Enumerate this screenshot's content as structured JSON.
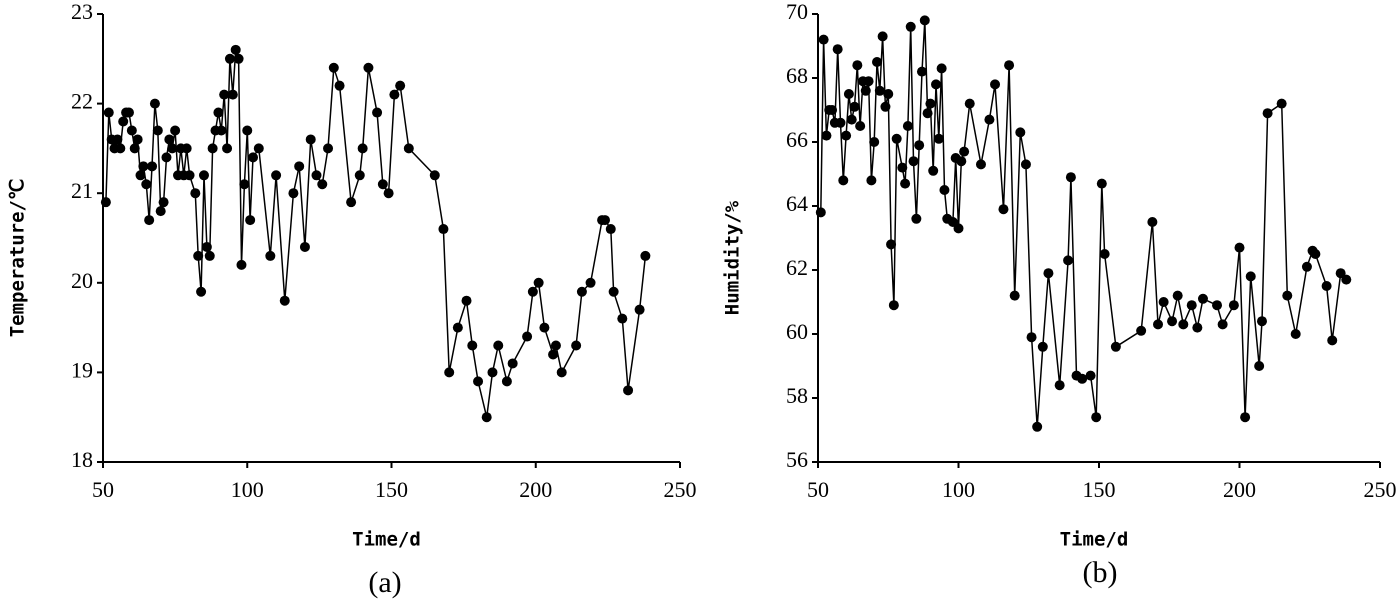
{
  "chart_data": [
    {
      "type": "line",
      "caption": "(a)",
      "x_label": "Time/d",
      "y_label": "Temperature/℃",
      "color": "#000000",
      "xlim": [
        50,
        250
      ],
      "xticks": [
        50,
        100,
        150,
        200,
        250
      ],
      "ylim": [
        18,
        23
      ],
      "yticks": [
        18,
        19,
        20,
        21,
        22,
        23
      ],
      "x": [
        51,
        52,
        53,
        54,
        55,
        56,
        57,
        58,
        59,
        60,
        61,
        62,
        63,
        64,
        65,
        66,
        67,
        68,
        69,
        70,
        71,
        72,
        73,
        74,
        75,
        76,
        77,
        78,
        79,
        80,
        82,
        83,
        84,
        85,
        86,
        87,
        88,
        89,
        90,
        91,
        92,
        93,
        94,
        95,
        96,
        97,
        98,
        99,
        100,
        101,
        102,
        104,
        108,
        110,
        113,
        116,
        118,
        120,
        122,
        124,
        126,
        128,
        130,
        132,
        136,
        139,
        140,
        142,
        145,
        147,
        149,
        151,
        153,
        156,
        165,
        168,
        170,
        173,
        176,
        178,
        180,
        183,
        185,
        187,
        190,
        192,
        197,
        199,
        201,
        203,
        206,
        207,
        209,
        214,
        216,
        219,
        223,
        224,
        226,
        227,
        230,
        232,
        236,
        238
      ],
      "values": [
        20.9,
        21.9,
        21.6,
        21.5,
        21.6,
        21.5,
        21.8,
        21.9,
        21.9,
        21.7,
        21.5,
        21.6,
        21.2,
        21.3,
        21.1,
        20.7,
        21.3,
        22.0,
        21.7,
        20.8,
        20.9,
        21.4,
        21.6,
        21.5,
        21.7,
        21.2,
        21.5,
        21.2,
        21.5,
        21.2,
        21.0,
        20.3,
        19.9,
        21.2,
        20.4,
        20.3,
        21.5,
        21.7,
        21.9,
        21.7,
        22.1,
        21.5,
        22.5,
        22.1,
        22.6,
        22.5,
        20.2,
        21.1,
        21.7,
        20.7,
        21.4,
        21.5,
        20.3,
        21.2,
        19.8,
        21.0,
        21.3,
        20.4,
        21.6,
        21.2,
        21.1,
        21.5,
        22.4,
        22.2,
        20.9,
        21.2,
        21.5,
        22.4,
        21.9,
        21.1,
        21.0,
        22.1,
        22.2,
        21.5,
        21.2,
        20.6,
        19.0,
        19.5,
        19.8,
        19.3,
        18.9,
        18.5,
        19.0,
        19.3,
        18.9,
        19.1,
        19.4,
        19.9,
        20.0,
        19.5,
        19.2,
        19.3,
        19.0,
        19.3,
        19.9,
        20.0,
        20.7,
        20.7,
        20.6,
        19.9,
        19.6,
        18.8,
        19.7,
        20.3
      ]
    },
    {
      "type": "line",
      "caption": "(b)",
      "x_label": "Time/d",
      "y_label": "Humidity/%",
      "color": "#000000",
      "xlim": [
        50,
        250
      ],
      "xticks": [
        50,
        100,
        150,
        200,
        250
      ],
      "ylim": [
        56,
        70
      ],
      "yticks": [
        56,
        58,
        60,
        62,
        64,
        66,
        68,
        70
      ],
      "x": [
        51,
        52,
        53,
        54,
        55,
        56,
        57,
        58,
        59,
        60,
        61,
        62,
        63,
        64,
        65,
        66,
        67,
        68,
        69,
        70,
        71,
        72,
        73,
        74,
        75,
        76,
        77,
        78,
        80,
        81,
        82,
        83,
        84,
        85,
        86,
        87,
        88,
        89,
        90,
        91,
        92,
        93,
        94,
        95,
        96,
        98,
        99,
        100,
        101,
        102,
        104,
        108,
        111,
        113,
        116,
        118,
        120,
        122,
        124,
        126,
        128,
        130,
        132,
        136,
        139,
        140,
        142,
        144,
        147,
        149,
        151,
        152,
        156,
        165,
        169,
        171,
        173,
        176,
        178,
        180,
        183,
        185,
        187,
        192,
        194,
        198,
        200,
        202,
        204,
        207,
        208,
        210,
        215,
        217,
        220,
        224,
        226,
        227,
        231,
        233,
        236,
        238
      ],
      "values": [
        63.8,
        69.2,
        66.2,
        67.0,
        67.0,
        66.6,
        68.9,
        66.6,
        64.8,
        66.2,
        67.5,
        66.7,
        67.1,
        68.4,
        66.5,
        67.9,
        67.6,
        67.9,
        64.8,
        66.0,
        68.5,
        67.6,
        69.3,
        67.1,
        67.5,
        62.8,
        60.9,
        66.1,
        65.2,
        64.7,
        66.5,
        69.6,
        65.4,
        63.6,
        65.9,
        68.2,
        69.8,
        66.9,
        67.2,
        65.1,
        67.8,
        66.1,
        68.3,
        64.5,
        63.6,
        63.5,
        65.5,
        63.3,
        65.4,
        65.7,
        67.2,
        65.3,
        66.7,
        67.8,
        63.9,
        68.4,
        61.2,
        66.3,
        65.3,
        59.9,
        57.1,
        59.6,
        61.9,
        58.4,
        62.3,
        64.9,
        58.7,
        58.6,
        58.7,
        57.4,
        64.7,
        62.5,
        59.6,
        60.1,
        63.5,
        60.3,
        61.0,
        60.4,
        61.2,
        60.3,
        60.9,
        60.2,
        61.1,
        60.9,
        60.3,
        60.9,
        62.7,
        57.4,
        61.8,
        59.0,
        60.4,
        66.9,
        67.2,
        61.2,
        60.0,
        62.1,
        62.6,
        62.5,
        61.5,
        59.8,
        61.9,
        61.7
      ]
    }
  ]
}
